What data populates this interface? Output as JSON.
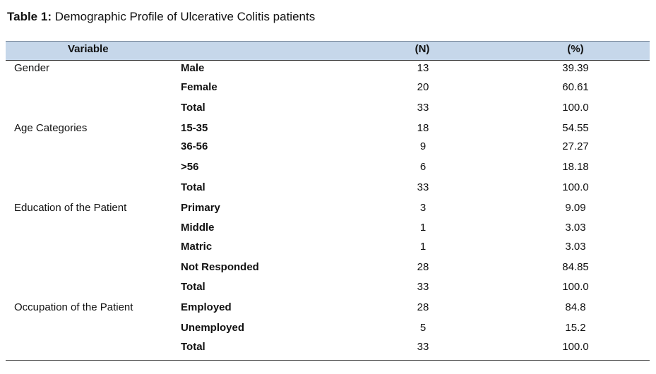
{
  "title": {
    "label": "Table 1:",
    "text": "Demographic Profile of Ulcerative Colitis patients"
  },
  "table": {
    "header": [
      "Variable",
      "(N)",
      "(%)"
    ],
    "groups": [
      {
        "label": "Gender",
        "rows": [
          [
            "Male",
            "13",
            "39.39"
          ],
          [
            "Female",
            "20",
            "60.61"
          ],
          [
            "Total",
            "33",
            "100.0"
          ]
        ]
      },
      {
        "label": "Age Categories",
        "rows": [
          [
            "15-35",
            "18",
            "54.55"
          ],
          [
            "36-56",
            "9",
            "27.27"
          ],
          [
            ">56",
            "6",
            "18.18"
          ],
          [
            "Total",
            "33",
            "100.0"
          ]
        ]
      },
      {
        "label": "Education of the Patient",
        "rows": [
          [
            "Primary",
            "3",
            "9.09"
          ],
          [
            "Middle",
            "1",
            "3.03"
          ],
          [
            "Matric",
            "1",
            "3.03"
          ],
          [
            "Not Responded",
            "28",
            "84.85"
          ],
          [
            "Total",
            "33",
            "100.0"
          ]
        ]
      },
      {
        "label": "Occupation of the Patient",
        "rows": [
          [
            "Employed",
            "28",
            "84.8"
          ],
          [
            "Unemployed",
            "5",
            "15.2"
          ],
          [
            "Total",
            "33",
            "100.0"
          ]
        ]
      }
    ]
  }
}
